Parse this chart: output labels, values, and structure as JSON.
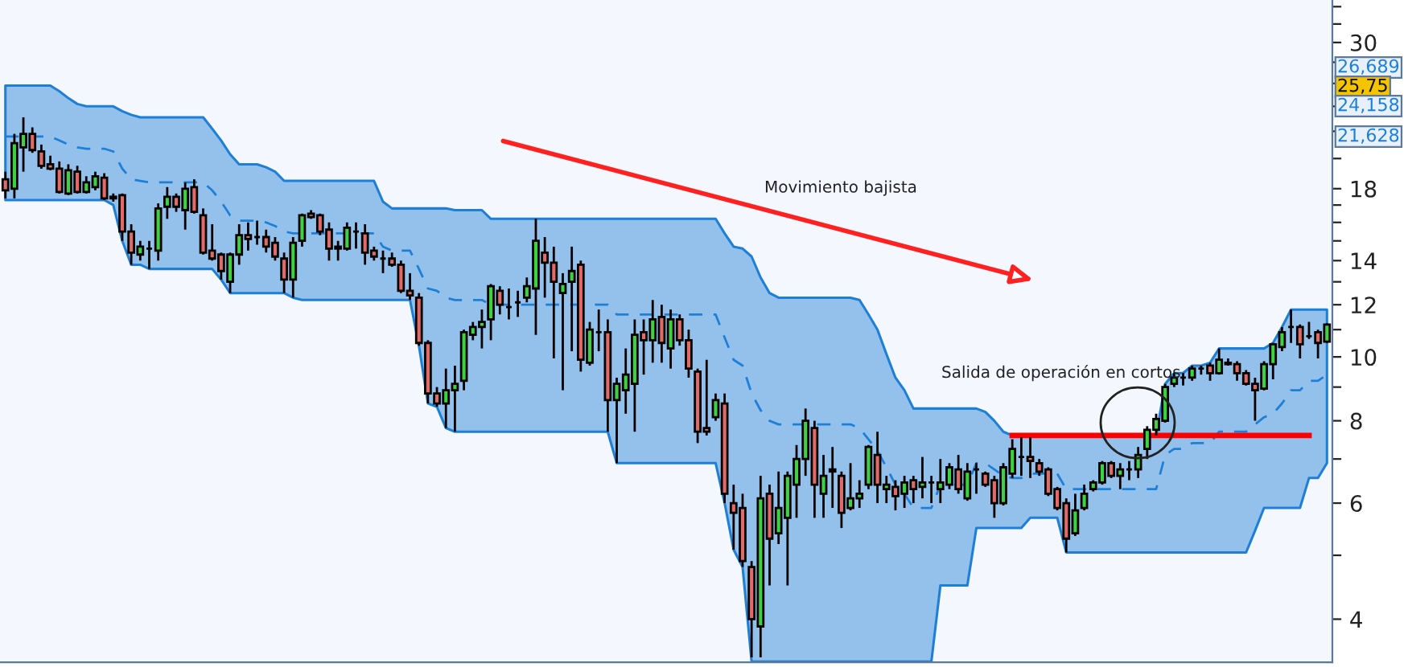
{
  "chart_data": {
    "type": "candlestick",
    "log": true,
    "grid": false,
    "tick_labels": "y",
    "categories": [
      null,
      null,
      null,
      null,
      null,
      null,
      null,
      null,
      null,
      null,
      null,
      null,
      null,
      null,
      null,
      null,
      null,
      null,
      null,
      null,
      null,
      null,
      null,
      null,
      null,
      null,
      null,
      null,
      null,
      null,
      null,
      null,
      null,
      null,
      null,
      null,
      null,
      null,
      null,
      null,
      null,
      null,
      null,
      null,
      null,
      null,
      null,
      null,
      null,
      null,
      null,
      null,
      null,
      null,
      null,
      null,
      null,
      null,
      null,
      null,
      null,
      null,
      null,
      null,
      null,
      null,
      null,
      null,
      null,
      null,
      null,
      null,
      null,
      null,
      null,
      null,
      null,
      null,
      null,
      null,
      null,
      null,
      null,
      null,
      null,
      null,
      null,
      null,
      null,
      null,
      null,
      null,
      null,
      null,
      null,
      null,
      null,
      null,
      null,
      null,
      null,
      null,
      null,
      null,
      null,
      null,
      null,
      null,
      null,
      null,
      null,
      null,
      null,
      null,
      null,
      null,
      null,
      null,
      null,
      null,
      null,
      null,
      null,
      null,
      null,
      null,
      null,
      null,
      null,
      null,
      null,
      null,
      null,
      null,
      null,
      null,
      null,
      null,
      null,
      null,
      null,
      null,
      null,
      null,
      null,
      null,
      null,
      null
    ],
    "ohlc": [
      [
        18.6,
        19.1,
        17.4,
        17.9
      ],
      [
        18.0,
        21.8,
        17.4,
        21.1
      ],
      [
        20.8,
        23.1,
        19.1,
        21.8
      ],
      [
        21.8,
        22.3,
        20.4,
        20.6
      ],
      [
        20.5,
        21.0,
        19.3,
        19.5
      ],
      [
        19.6,
        20.2,
        19.2,
        19.3
      ],
      [
        19.3,
        19.8,
        17.7,
        17.8
      ],
      [
        17.7,
        19.6,
        17.6,
        19.2
      ],
      [
        19.1,
        19.5,
        17.7,
        17.8
      ],
      [
        17.8,
        18.8,
        17.7,
        18.4
      ],
      [
        18.1,
        19.1,
        17.9,
        18.8
      ],
      [
        18.7,
        19.0,
        17.3,
        17.4
      ],
      [
        17.5,
        17.7,
        17.2,
        17.4
      ],
      [
        17.6,
        17.7,
        15.0,
        15.5
      ],
      [
        15.5,
        15.9,
        13.8,
        14.4
      ],
      [
        14.3,
        15.0,
        14.0,
        14.7
      ],
      [
        14.6,
        15.0,
        13.6,
        14.6
      ],
      [
        14.5,
        17.1,
        14.0,
        16.8
      ],
      [
        16.9,
        18.1,
        16.2,
        17.5
      ],
      [
        17.5,
        17.7,
        16.6,
        16.9
      ],
      [
        16.7,
        18.4,
        15.6,
        18.0
      ],
      [
        18.1,
        18.6,
        16.5,
        16.6
      ],
      [
        16.4,
        16.8,
        14.3,
        14.4
      ],
      [
        14.5,
        15.9,
        14.0,
        14.1
      ],
      [
        14.3,
        14.4,
        13.1,
        13.5
      ],
      [
        13.0,
        14.4,
        12.5,
        14.3
      ],
      [
        14.3,
        15.9,
        13.8,
        15.3
      ],
      [
        15.3,
        16.0,
        14.5,
        15.1
      ],
      [
        15.2,
        16.1,
        14.8,
        15.2
      ],
      [
        15.2,
        15.6,
        14.4,
        14.7
      ],
      [
        14.9,
        15.2,
        14.0,
        14.2
      ],
      [
        14.1,
        14.4,
        12.5,
        13.1
      ],
      [
        13.1,
        15.2,
        12.3,
        14.9
      ],
      [
        15.0,
        16.5,
        14.7,
        16.4
      ],
      [
        16.5,
        16.7,
        16.2,
        16.3
      ],
      [
        16.4,
        16.5,
        15.3,
        15.5
      ],
      [
        15.6,
        16.0,
        14.0,
        14.6
      ],
      [
        14.6,
        15.0,
        14.0,
        14.7
      ],
      [
        14.6,
        16.0,
        14.5,
        15.7
      ],
      [
        15.5,
        16.0,
        14.6,
        15.5
      ],
      [
        15.4,
        15.9,
        13.8,
        14.4
      ],
      [
        14.5,
        14.7,
        14.0,
        14.2
      ],
      [
        14.1,
        14.5,
        13.4,
        14.1
      ],
      [
        14.1,
        14.4,
        13.7,
        13.8
      ],
      [
        13.8,
        14.0,
        12.5,
        12.6
      ],
      [
        12.6,
        13.4,
        12.2,
        12.4
      ],
      [
        12.3,
        12.5,
        10.4,
        10.5
      ],
      [
        10.5,
        10.6,
        8.5,
        8.8
      ],
      [
        8.8,
        9.0,
        8.4,
        8.5
      ],
      [
        8.5,
        9.6,
        7.8,
        8.9
      ],
      [
        8.9,
        9.7,
        7.7,
        9.1
      ],
      [
        9.2,
        11.0,
        8.9,
        10.9
      ],
      [
        10.8,
        11.3,
        10.6,
        11.1
      ],
      [
        11.1,
        11.8,
        10.3,
        11.3
      ],
      [
        11.4,
        12.9,
        10.6,
        12.8
      ],
      [
        12.6,
        12.8,
        11.6,
        12.0
      ],
      [
        11.9,
        12.7,
        11.4,
        11.9
      ],
      [
        12.1,
        12.6,
        11.5,
        12.1
      ],
      [
        12.3,
        13.2,
        12.1,
        12.8
      ],
      [
        12.7,
        16.2,
        10.8,
        15.0
      ],
      [
        14.4,
        15.2,
        12.3,
        13.9
      ],
      [
        13.9,
        14.7,
        9.95,
        13.0
      ],
      [
        12.5,
        13.4,
        8.9,
        12.9
      ],
      [
        13.0,
        14.7,
        10.2,
        13.5
      ],
      [
        13.8,
        14.0,
        9.5,
        9.9
      ],
      [
        9.8,
        11.3,
        9.7,
        11.0
      ],
      [
        10.9,
        11.8,
        10.2,
        10.9
      ],
      [
        10.9,
        11.4,
        7.7,
        8.6
      ],
      [
        8.6,
        9.3,
        6.9,
        9.1
      ],
      [
        8.9,
        10.3,
        8.2,
        9.4
      ],
      [
        9.1,
        11.4,
        7.7,
        10.8
      ],
      [
        10.9,
        11.4,
        9.4,
        10.6
      ],
      [
        10.6,
        12.2,
        9.8,
        11.4
      ],
      [
        11.5,
        12.0,
        9.8,
        10.5
      ],
      [
        10.3,
        11.8,
        9.6,
        11.4
      ],
      [
        11.4,
        11.6,
        10.4,
        10.6
      ],
      [
        10.6,
        11.0,
        9.3,
        9.6
      ],
      [
        9.5,
        9.6,
        7.4,
        7.7
      ],
      [
        7.8,
        9.9,
        7.6,
        7.7
      ],
      [
        8.1,
        8.8,
        8.0,
        8.6
      ],
      [
        8.5,
        8.8,
        6.0,
        6.2
      ],
      [
        6.0,
        6.4,
        5.1,
        5.8
      ],
      [
        5.9,
        6.2,
        4.8,
        4.9
      ],
      [
        4.8,
        4.9,
        3.5,
        4.0
      ],
      [
        3.9,
        6.6,
        3.5,
        6.1
      ],
      [
        6.2,
        6.4,
        4.5,
        5.3
      ],
      [
        5.4,
        6.7,
        5.2,
        5.9
      ],
      [
        5.7,
        6.7,
        4.5,
        6.6
      ],
      [
        6.4,
        7.35,
        5.7,
        7.0
      ],
      [
        7.0,
        8.35,
        6.6,
        8.0
      ],
      [
        7.8,
        8.0,
        5.7,
        6.4
      ],
      [
        6.2,
        7.1,
        5.7,
        6.6
      ],
      [
        6.7,
        7.3,
        5.9,
        6.75
      ],
      [
        6.6,
        6.7,
        5.5,
        5.8
      ],
      [
        5.9,
        6.9,
        5.85,
        6.1
      ],
      [
        6.1,
        6.5,
        5.9,
        6.2
      ],
      [
        6.4,
        7.35,
        6.3,
        7.3
      ],
      [
        7.1,
        7.7,
        6.0,
        6.4
      ],
      [
        6.3,
        6.6,
        6.0,
        6.4
      ],
      [
        6.35,
        6.5,
        5.85,
        6.15
      ],
      [
        6.2,
        6.6,
        5.9,
        6.45
      ],
      [
        6.5,
        6.6,
        6.0,
        6.3
      ],
      [
        6.35,
        7.05,
        6.1,
        6.45
      ],
      [
        6.45,
        6.6,
        6.0,
        6.45
      ],
      [
        6.3,
        7.0,
        6.0,
        6.45
      ],
      [
        6.4,
        6.9,
        6.3,
        6.8
      ],
      [
        6.75,
        7.1,
        6.2,
        6.3
      ],
      [
        6.1,
        6.9,
        6.05,
        6.7
      ],
      [
        6.75,
        6.9,
        6.2,
        6.75
      ],
      [
        6.65,
        6.7,
        6.35,
        6.4
      ],
      [
        6.5,
        6.6,
        5.7,
        6.0
      ],
      [
        6.0,
        6.9,
        5.95,
        6.8
      ],
      [
        6.65,
        7.5,
        6.55,
        7.25
      ],
      [
        7.05,
        7.55,
        6.6,
        7.05
      ],
      [
        7.05,
        7.55,
        6.55,
        6.95
      ],
      [
        6.9,
        7.0,
        6.6,
        6.7
      ],
      [
        6.75,
        6.8,
        6.15,
        6.2
      ],
      [
        6.3,
        6.35,
        5.85,
        5.9
      ],
      [
        6.0,
        6.1,
        5.05,
        5.3
      ],
      [
        5.4,
        6.2,
        5.35,
        5.85
      ],
      [
        5.9,
        6.4,
        5.85,
        6.2
      ],
      [
        6.3,
        6.5,
        6.25,
        6.45
      ],
      [
        6.45,
        6.95,
        6.4,
        6.9
      ],
      [
        6.9,
        6.95,
        6.55,
        6.6
      ],
      [
        6.6,
        6.9,
        6.3,
        6.75
      ],
      [
        6.75,
        6.95,
        6.5,
        6.75
      ],
      [
        6.75,
        7.3,
        6.55,
        7.1
      ],
      [
        7.25,
        7.85,
        7.0,
        7.75
      ],
      [
        7.75,
        8.2,
        7.6,
        8.05
      ],
      [
        8.0,
        9.1,
        7.95,
        9.0
      ],
      [
        9.1,
        9.45,
        9.0,
        9.3
      ],
      [
        9.3,
        9.45,
        9.05,
        9.3
      ],
      [
        9.3,
        9.7,
        9.2,
        9.6
      ],
      [
        9.6,
        9.7,
        9.4,
        9.6
      ],
      [
        9.7,
        9.8,
        9.2,
        9.45
      ],
      [
        9.45,
        10.3,
        9.4,
        9.9
      ],
      [
        9.8,
        9.95,
        9.7,
        9.75
      ],
      [
        9.75,
        9.85,
        9.2,
        9.45
      ],
      [
        9.45,
        9.55,
        9.05,
        9.1
      ],
      [
        9.1,
        9.3,
        8.0,
        8.9
      ],
      [
        8.95,
        9.85,
        8.9,
        9.75
      ],
      [
        9.75,
        10.5,
        9.25,
        10.45
      ],
      [
        10.35,
        11.1,
        10.2,
        10.9
      ],
      [
        11.1,
        11.8,
        10.5,
        11.1
      ],
      [
        11.1,
        11.2,
        9.95,
        10.45
      ],
      [
        10.75,
        11.3,
        10.65,
        10.75
      ],
      [
        10.9,
        11.0,
        9.95,
        10.5
      ],
      [
        10.55,
        11.25,
        10.5,
        11.2
      ]
    ],
    "series": [
      {
        "type": "line",
        "line_style": "dashed",
        "color": "#1e7fd6",
        "values": [
          21.6,
          21.6,
          21.6,
          21.6,
          21.6,
          21.6,
          21.3,
          21.0,
          20.8,
          20.7,
          20.7,
          20.7,
          20.5,
          19.3,
          18.6,
          18.5,
          18.4,
          18.4,
          18.4,
          18.4,
          18.4,
          18.4,
          18.4,
          17.9,
          17.2,
          16.4,
          16.1,
          16.1,
          16.1,
          16.0,
          15.8,
          15.5,
          15.4,
          15.4,
          15.4,
          15.4,
          15.4,
          15.4,
          15.4,
          15.4,
          15.4,
          15.4,
          14.7,
          14.5,
          14.5,
          14.5,
          13.6,
          12.7,
          12.6,
          12.3,
          12.2,
          12.2,
          12.2,
          12.2,
          12.0,
          12.0,
          12.0,
          12.0,
          12.0,
          12.0,
          12.0,
          12.0,
          12.0,
          12.0,
          12.0,
          12.0,
          12.0,
          12.0,
          11.6,
          11.6,
          11.6,
          11.6,
          11.6,
          11.6,
          11.6,
          11.6,
          11.6,
          11.6,
          11.6,
          11.6,
          10.7,
          9.9,
          9.7,
          8.8,
          8.3,
          8.0,
          7.9,
          7.9,
          7.9,
          7.9,
          7.9,
          7.9,
          7.9,
          7.9,
          7.9,
          7.8,
          7.5,
          7.2,
          6.8,
          6.4,
          6.2,
          5.9,
          5.9,
          5.9,
          6.4,
          6.4,
          6.4,
          6.4,
          6.9,
          6.9,
          6.75,
          6.6,
          6.55,
          6.55,
          6.65,
          6.65,
          6.65,
          6.65,
          6.3,
          6.3,
          6.3,
          6.3,
          6.3,
          6.3,
          6.3,
          6.3,
          6.3,
          6.3,
          6.3,
          7.1,
          7.25,
          7.25,
          7.4,
          7.4,
          7.4,
          7.7,
          7.7,
          7.7,
          7.7,
          7.9,
          8.1,
          8.2,
          8.5,
          8.9,
          8.9,
          9.2,
          9.2,
          9.4
        ],
        "upper": [
          25.8,
          25.8,
          25.8,
          25.8,
          25.8,
          25.8,
          25.3,
          24.7,
          24.2,
          24.0,
          24.0,
          24.0,
          24.0,
          23.6,
          23.3,
          23.1,
          23.1,
          23.1,
          23.1,
          23.1,
          23.1,
          23.1,
          23.1,
          22.2,
          21.3,
          20.3,
          19.6,
          19.6,
          19.6,
          19.4,
          19.1,
          18.5,
          18.5,
          18.5,
          18.5,
          18.5,
          18.5,
          18.5,
          18.5,
          18.5,
          18.5,
          18.5,
          17.2,
          16.8,
          16.8,
          16.8,
          16.8,
          16.8,
          16.8,
          16.8,
          16.7,
          16.7,
          16.7,
          16.7,
          16.2,
          16.2,
          16.2,
          16.2,
          16.2,
          16.2,
          16.2,
          16.2,
          16.2,
          16.2,
          16.2,
          16.2,
          16.2,
          16.2,
          16.2,
          16.2,
          16.2,
          16.2,
          16.2,
          16.2,
          16.2,
          16.2,
          16.2,
          16.2,
          16.2,
          16.2,
          15.4,
          14.7,
          14.6,
          14.2,
          13.2,
          12.5,
          12.3,
          12.3,
          12.3,
          12.3,
          12.3,
          12.3,
          12.3,
          12.3,
          12.3,
          12.2,
          11.6,
          11.0,
          10.1,
          9.3,
          8.9,
          8.35,
          8.35,
          8.35,
          8.35,
          8.35,
          8.35,
          8.35,
          8.35,
          8.25,
          8.0,
          7.7,
          7.6,
          7.6,
          7.6,
          7.6,
          7.6,
          7.6,
          7.6,
          7.6,
          7.6,
          7.6,
          7.6,
          7.6,
          7.6,
          7.6,
          7.6,
          7.6,
          7.6,
          9.1,
          9.45,
          9.45,
          9.7,
          9.7,
          9.8,
          10.3,
          10.3,
          10.3,
          10.3,
          10.3,
          10.3,
          10.5,
          11.1,
          11.8,
          11.8,
          11.8,
          11.8,
          11.8
        ],
        "lower": [
          17.3,
          17.3,
          17.3,
          17.3,
          17.3,
          17.3,
          17.3,
          17.3,
          17.3,
          17.3,
          17.3,
          17.3,
          17.0,
          15.0,
          13.8,
          13.8,
          13.6,
          13.6,
          13.6,
          13.6,
          13.6,
          13.6,
          13.6,
          13.6,
          13.1,
          12.5,
          12.5,
          12.5,
          12.5,
          12.5,
          12.5,
          12.5,
          12.3,
          12.2,
          12.2,
          12.2,
          12.2,
          12.2,
          12.2,
          12.2,
          12.2,
          12.2,
          12.2,
          12.2,
          12.2,
          12.2,
          10.4,
          8.5,
          8.4,
          7.8,
          7.7,
          7.7,
          7.7,
          7.7,
          7.7,
          7.7,
          7.7,
          7.7,
          7.7,
          7.7,
          7.7,
          7.7,
          7.7,
          7.7,
          7.7,
          7.7,
          7.7,
          7.7,
          6.9,
          6.9,
          6.9,
          6.9,
          6.9,
          6.9,
          6.9,
          6.9,
          6.9,
          6.9,
          6.9,
          6.9,
          6.0,
          5.1,
          4.8,
          3.45,
          3.45,
          3.45,
          3.45,
          3.45,
          3.45,
          3.45,
          3.45,
          3.45,
          3.45,
          3.45,
          3.45,
          3.45,
          3.45,
          3.45,
          3.45,
          3.45,
          3.45,
          3.45,
          3.45,
          3.45,
          4.5,
          4.5,
          4.5,
          4.5,
          5.5,
          5.5,
          5.5,
          5.5,
          5.5,
          5.5,
          5.7,
          5.7,
          5.7,
          5.7,
          5.05,
          5.05,
          5.05,
          5.05,
          5.05,
          5.05,
          5.05,
          5.05,
          5.05,
          5.05,
          5.05,
          5.05,
          5.05,
          5.05,
          5.05,
          5.05,
          5.05,
          5.05,
          5.05,
          5.05,
          5.05,
          5.45,
          5.9,
          5.9,
          5.9,
          5.9,
          5.9,
          6.55,
          6.55,
          6.9
        ]
      },
      {
        "type": "line",
        "line_style": "solid",
        "color": "#ff0000",
        "values": [
          null,
          null,
          null,
          null,
          null,
          null,
          null,
          null,
          null,
          null,
          null,
          null,
          null,
          null,
          null,
          null,
          null,
          null,
          null,
          null,
          null,
          null,
          null,
          null,
          null,
          null,
          null,
          null,
          null,
          null,
          null,
          null,
          null,
          null,
          null,
          null,
          null,
          null,
          null,
          null,
          null,
          null,
          null,
          null,
          null,
          null,
          null,
          null,
          null,
          null,
          null,
          null,
          null,
          null,
          null,
          null,
          null,
          null,
          null,
          null,
          null,
          null,
          null,
          null,
          null,
          null,
          null,
          null,
          null,
          null,
          null,
          null,
          null,
          null,
          null,
          null,
          null,
          null,
          null,
          null,
          null,
          null,
          null,
          null,
          null,
          null,
          null,
          null,
          null,
          null,
          null,
          null,
          null,
          null,
          null,
          null,
          null,
          null,
          null,
          null,
          null,
          null,
          null,
          null,
          null,
          null,
          null,
          null,
          null,
          null,
          null,
          null,
          7.6,
          7.6,
          7.6,
          7.6,
          7.6,
          7.6,
          7.6,
          7.6,
          7.6,
          7.6,
          7.6,
          7.6,
          7.6,
          7.6,
          7.6,
          7.6,
          7.6,
          7.6,
          7.6,
          7.6,
          7.6,
          7.6,
          7.6,
          7.6,
          7.6,
          7.6,
          7.6,
          7.6,
          7.6,
          7.6,
          7.6,
          7.6,
          7.6,
          7.6,
          null,
          null
        ]
      }
    ],
    "ylim": [
      3.44,
      34.8
    ],
    "yticks": [
      4,
      {
        "value": 5,
        "label": null
      },
      6,
      {
        "value": 7,
        "label": null
      },
      8,
      {
        "value": 9,
        "label": null
      },
      10,
      {
        "value": 11,
        "label": null
      },
      12,
      {
        "value": 13,
        "label": null
      },
      14,
      {
        "value": 15,
        "label": null
      },
      {
        "value": 16,
        "label": null
      },
      {
        "value": 17,
        "label": null
      },
      18,
      {
        "value": 20,
        "label": null
      },
      {
        "value": 22,
        "label": null
      },
      {
        "value": 24,
        "label": null
      },
      {
        "value": 26,
        "label": null
      },
      {
        "value": 28,
        "label": null
      },
      30,
      {
        "value": 32,
        "label": null
      },
      {
        "value": 34,
        "label": null
      }
    ],
    "annotations": [
      "Movimiento bajista",
      "Salida de operación en cortos",
      "26,689",
      "25,75",
      "24,158",
      "21,628"
    ]
  }
}
